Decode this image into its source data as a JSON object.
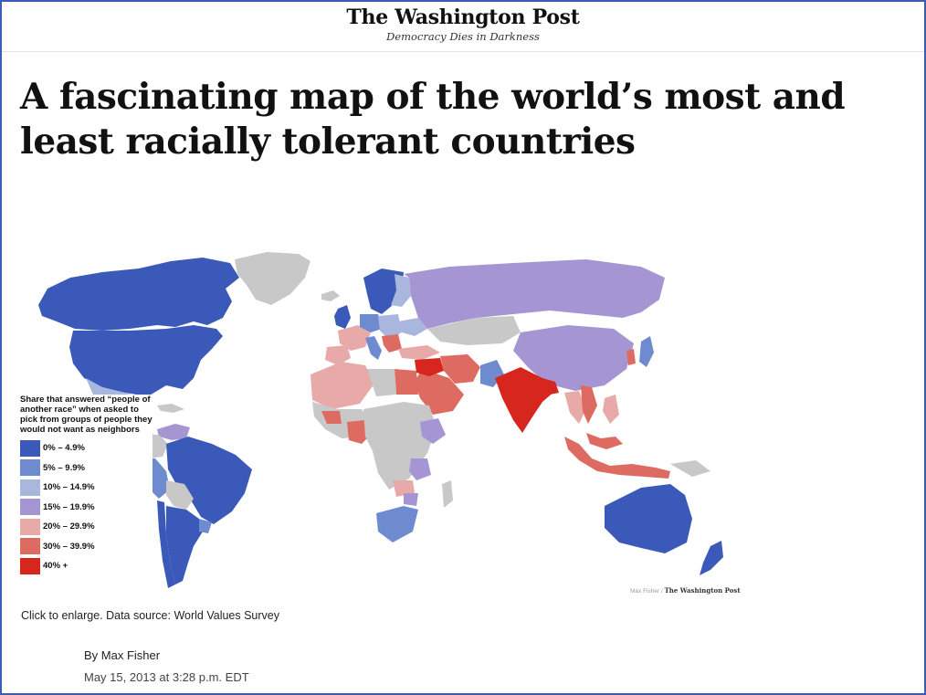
{
  "masthead": {
    "brand": "The Washington Post",
    "tagline": "Democracy Dies in Darkness"
  },
  "headline": "A fascinating map of the world’s most and least racially tolerant countries",
  "map": {
    "legend_title": "Share that answered “people of another race” when asked to pick from groups of people they would not want as neighbors",
    "legend": [
      {
        "label": "0% – 4.9%",
        "color": "#3a59b8"
      },
      {
        "label": "5% – 9.9%",
        "color": "#6f8bd0"
      },
      {
        "label": "10% – 14.9%",
        "color": "#a9b7df"
      },
      {
        "label": "15% – 19.9%",
        "color": "#a596d3"
      },
      {
        "label": "20% – 29.9%",
        "color": "#e8aaa8"
      },
      {
        "label": "30% – 39.9%",
        "color": "#de6b62"
      },
      {
        "label": "40% +",
        "color": "#d7261e"
      }
    ],
    "no_data_color": "#c8c8c8",
    "credit_author": "Max Fisher /",
    "credit_logo": "The Washington Post"
  },
  "caption": "Click to enlarge. Data source: World Values Survey",
  "byline": "By Max Fisher",
  "dateline": "May 15, 2013 at 3:28 p.m. EDT"
}
